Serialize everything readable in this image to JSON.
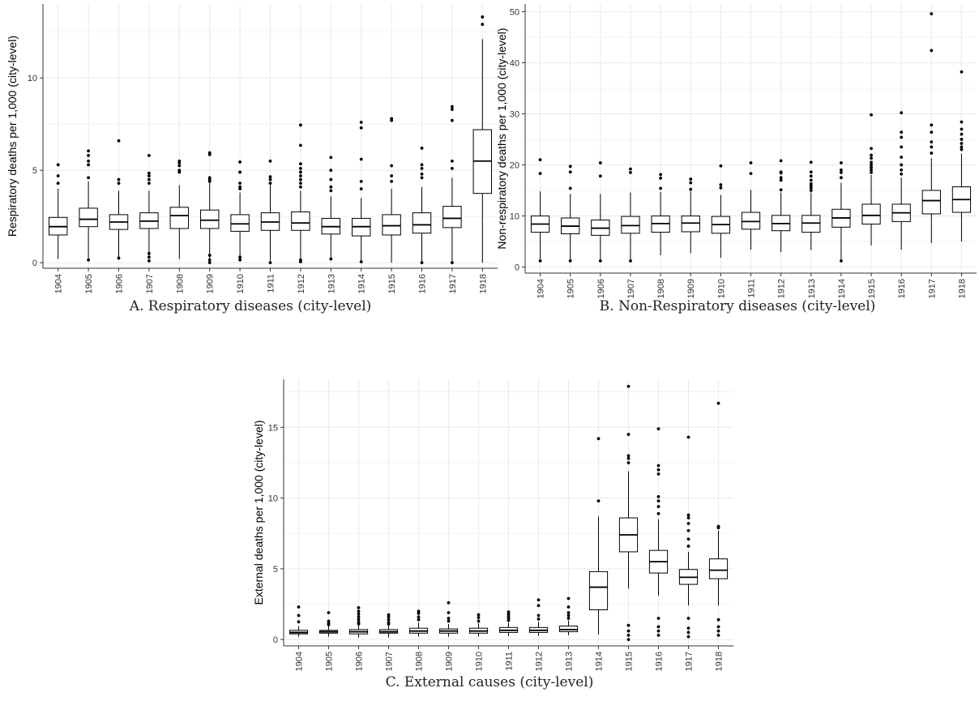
{
  "captions": {
    "a": {
      "prefix": "A.",
      "text": "Respiratory diseases (city-level)"
    },
    "b": {
      "prefix": "B.",
      "text": "Non-Respiratory diseases (city-level)"
    },
    "c": {
      "prefix": "C.",
      "text": "External causes (city-level)"
    }
  },
  "colors": {
    "grid": "#ebebeb",
    "box": "#000000",
    "axis": "#333333",
    "background": "#ffffff"
  },
  "chart_data": [
    {
      "id": "a",
      "type": "box",
      "title": "",
      "xlabel": "",
      "ylabel": "Respiratory deaths per 1,000 (city-level)",
      "categories": [
        "1904",
        "1905",
        "1906",
        "1907",
        "1908",
        "1909",
        "1910",
        "1911",
        "1912",
        "1913",
        "1914",
        "1915",
        "1916",
        "1917",
        "1918"
      ],
      "ylim": [
        -0.3,
        14
      ],
      "yticks": [
        0,
        5,
        10
      ],
      "grid": true,
      "boxes": [
        {
          "low": 0.2,
          "q1": 1.5,
          "median": 1.95,
          "q3": 2.45,
          "high": 4.0,
          "outliers": [
            4.3,
            4.7,
            5.3
          ]
        },
        {
          "low": 0.2,
          "q1": 1.95,
          "median": 2.35,
          "q3": 2.95,
          "high": 4.4,
          "outliers": [
            0.15,
            4.6,
            5.3,
            5.5,
            5.8,
            6.05
          ]
        },
        {
          "low": 0.25,
          "q1": 1.8,
          "median": 2.2,
          "q3": 2.6,
          "high": 3.9,
          "outliers": [
            0.25,
            4.3,
            4.5,
            6.6
          ]
        },
        {
          "low": 0.2,
          "q1": 1.85,
          "median": 2.25,
          "q3": 2.7,
          "high": 3.9,
          "outliers": [
            0.1,
            0.3,
            0.5,
            4.3,
            4.5,
            4.7,
            4.85,
            5.8
          ]
        },
        {
          "low": 0.2,
          "q1": 1.85,
          "median": 2.55,
          "q3": 3.0,
          "high": 4.2,
          "outliers": [
            4.9,
            5.0,
            5.25,
            5.4,
            5.5
          ]
        },
        {
          "low": 0.2,
          "q1": 1.85,
          "median": 2.3,
          "q3": 2.85,
          "high": 4.3,
          "outliers": [
            0.0,
            0.15,
            0.4,
            4.4,
            4.5,
            4.6,
            5.85,
            5.95
          ]
        },
        {
          "low": 0.3,
          "q1": 1.7,
          "median": 2.1,
          "q3": 2.6,
          "high": 3.8,
          "outliers": [
            0.15,
            0.3,
            4.0,
            4.1,
            4.3,
            4.9,
            5.45
          ]
        },
        {
          "low": 0.1,
          "q1": 1.75,
          "median": 2.2,
          "q3": 2.7,
          "high": 4.2,
          "outliers": [
            0.0,
            4.3,
            4.5,
            4.65,
            5.5
          ]
        },
        {
          "low": 0.2,
          "q1": 1.75,
          "median": 2.15,
          "q3": 2.75,
          "high": 3.9,
          "outliers": [
            0.05,
            0.15,
            4.1,
            4.3,
            4.5,
            4.7,
            4.9,
            5.1,
            5.35,
            6.35,
            7.45
          ]
        },
        {
          "low": 0.25,
          "q1": 1.55,
          "median": 1.95,
          "q3": 2.4,
          "high": 3.6,
          "outliers": [
            0.2,
            3.9,
            4.1,
            4.5,
            5.0,
            5.7
          ]
        },
        {
          "low": 0.1,
          "q1": 1.45,
          "median": 1.95,
          "q3": 2.4,
          "high": 3.5,
          "outliers": [
            0.05,
            4.0,
            4.4,
            5.6,
            7.3,
            7.6
          ]
        },
        {
          "low": 0.0,
          "q1": 1.5,
          "median": 2.0,
          "q3": 2.6,
          "high": 4.0,
          "outliers": [
            4.4,
            4.7,
            5.25,
            7.7,
            7.8
          ]
        },
        {
          "low": 0.0,
          "q1": 1.6,
          "median": 2.05,
          "q3": 2.7,
          "high": 4.1,
          "outliers": [
            0.0,
            4.6,
            4.8,
            5.1,
            5.3,
            6.2
          ]
        },
        {
          "low": 0.0,
          "q1": 1.9,
          "median": 2.4,
          "q3": 3.05,
          "high": 4.6,
          "outliers": [
            0.0,
            5.1,
            5.5,
            7.7,
            8.3,
            8.45
          ]
        },
        {
          "low": 0.0,
          "q1": 3.75,
          "median": 5.5,
          "q3": 7.2,
          "high": 12.1,
          "outliers": [
            12.9,
            13.3
          ]
        }
      ]
    },
    {
      "id": "b",
      "type": "box",
      "title": "",
      "xlabel": "",
      "ylabel": "Non-respiratory deaths per 1,000 (city-level)",
      "categories": [
        "1904",
        "1905",
        "1906",
        "1907",
        "1908",
        "1909",
        "1910",
        "1911",
        "1912",
        "1913",
        "1914",
        "1915",
        "1916",
        "1917",
        "1918"
      ],
      "ylim": [
        -1.2,
        51.5
      ],
      "yticks": [
        0,
        10,
        20,
        30,
        40,
        50
      ],
      "grid": true,
      "boxes": [
        {
          "low": 1.2,
          "q1": 6.8,
          "median": 8.4,
          "q3": 10.0,
          "high": 14.8,
          "outliers": [
            1.2,
            18.3,
            21.0
          ]
        },
        {
          "low": 1.2,
          "q1": 6.5,
          "median": 8.0,
          "q3": 9.6,
          "high": 14.3,
          "outliers": [
            1.2,
            15.4,
            18.6,
            19.7
          ]
        },
        {
          "low": 1.2,
          "q1": 6.2,
          "median": 7.6,
          "q3": 9.2,
          "high": 14.3,
          "outliers": [
            1.2,
            17.8,
            20.4
          ]
        },
        {
          "low": 1.2,
          "q1": 6.6,
          "median": 8.1,
          "q3": 9.9,
          "high": 14.6,
          "outliers": [
            1.2,
            18.5,
            19.2
          ]
        },
        {
          "low": 2.3,
          "q1": 6.8,
          "median": 8.5,
          "q3": 10.0,
          "high": 14.7,
          "outliers": [
            15.4,
            17.4,
            18.1
          ]
        },
        {
          "low": 2.7,
          "q1": 6.9,
          "median": 8.6,
          "q3": 10.0,
          "high": 14.8,
          "outliers": [
            15.2,
            16.5,
            17.2
          ]
        },
        {
          "low": 1.8,
          "q1": 6.6,
          "median": 8.3,
          "q3": 9.9,
          "high": 14.1,
          "outliers": [
            15.5,
            16.1,
            19.8
          ]
        },
        {
          "low": 3.4,
          "q1": 7.4,
          "median": 8.9,
          "q3": 10.7,
          "high": 15.1,
          "outliers": [
            18.3,
            20.4
          ]
        },
        {
          "low": 2.9,
          "q1": 7.1,
          "median": 8.5,
          "q3": 10.1,
          "high": 14.6,
          "outliers": [
            15.1,
            17.0,
            17.5,
            18.4,
            18.6,
            20.8
          ]
        },
        {
          "low": 3.3,
          "q1": 6.8,
          "median": 8.6,
          "q3": 10.1,
          "high": 14.6,
          "outliers": [
            15.0,
            15.5,
            15.9,
            16.3,
            17.0,
            17.8,
            18.6,
            20.5
          ]
        },
        {
          "low": 1.2,
          "q1": 7.8,
          "median": 9.6,
          "q3": 11.3,
          "high": 16.5,
          "outliers": [
            1.2,
            17.5,
            18.5,
            19.0,
            20.4
          ]
        },
        {
          "low": 4.2,
          "q1": 8.4,
          "median": 10.1,
          "q3": 12.3,
          "high": 18.0,
          "outliers": [
            18.5,
            19.0,
            19.5,
            20.0,
            20.5,
            21.3,
            21.9,
            23.2,
            29.8
          ]
        },
        {
          "low": 3.4,
          "q1": 8.9,
          "median": 10.6,
          "q3": 12.3,
          "high": 17.5,
          "outliers": [
            18.2,
            19.0,
            20.0,
            21.5,
            23.5,
            25.4,
            26.4,
            30.2
          ]
        },
        {
          "low": 4.7,
          "q1": 10.4,
          "median": 13.0,
          "q3": 15.0,
          "high": 21.3,
          "outliers": [
            22.3,
            23.5,
            24.5,
            26.4,
            27.8,
            42.4,
            49.6
          ]
        },
        {
          "low": 5.0,
          "q1": 10.7,
          "median": 13.2,
          "q3": 15.7,
          "high": 22.2,
          "outliers": [
            23.0,
            23.5,
            24.2,
            25.0,
            26.0,
            27.0,
            28.4,
            38.2
          ]
        }
      ]
    },
    {
      "id": "c",
      "type": "box",
      "title": "",
      "xlabel": "",
      "ylabel": "External deaths per 1,000 (city-level)",
      "categories": [
        "1904",
        "1905",
        "1906",
        "1907",
        "1908",
        "1909",
        "1910",
        "1911",
        "1912",
        "1913",
        "1914",
        "1915",
        "1916",
        "1917",
        "1918"
      ],
      "ylim": [
        -0.45,
        18.4
      ],
      "yticks": [
        0,
        5,
        10,
        15
      ],
      "grid": true,
      "boxes": [
        {
          "low": 0.2,
          "q1": 0.4,
          "median": 0.5,
          "q3": 0.65,
          "high": 0.95,
          "outliers": [
            1.25,
            1.7,
            2.3
          ]
        },
        {
          "low": 0.2,
          "q1": 0.45,
          "median": 0.55,
          "q3": 0.65,
          "high": 0.95,
          "outliers": [
            1.05,
            1.15,
            1.3,
            1.9
          ]
        },
        {
          "low": 0.15,
          "q1": 0.4,
          "median": 0.55,
          "q3": 0.7,
          "high": 1.0,
          "outliers": [
            1.1,
            1.2,
            1.4,
            1.6,
            1.8,
            2.0,
            2.25
          ]
        },
        {
          "low": 0.15,
          "q1": 0.45,
          "median": 0.55,
          "q3": 0.7,
          "high": 1.0,
          "outliers": [
            1.1,
            1.2,
            1.4,
            1.6,
            1.75
          ]
        },
        {
          "low": 0.2,
          "q1": 0.45,
          "median": 0.6,
          "q3": 0.8,
          "high": 1.2,
          "outliers": [
            1.4,
            1.6,
            1.85,
            2.0
          ]
        },
        {
          "low": 0.2,
          "q1": 0.45,
          "median": 0.6,
          "q3": 0.75,
          "high": 1.1,
          "outliers": [
            1.3,
            1.5,
            1.9,
            2.6
          ]
        },
        {
          "low": 0.2,
          "q1": 0.45,
          "median": 0.6,
          "q3": 0.8,
          "high": 1.15,
          "outliers": [
            1.3,
            1.55,
            1.75
          ]
        },
        {
          "low": 0.25,
          "q1": 0.5,
          "median": 0.65,
          "q3": 0.85,
          "high": 1.2,
          "outliers": [
            1.35,
            1.5,
            1.65,
            1.8,
            1.95
          ]
        },
        {
          "low": 0.25,
          "q1": 0.5,
          "median": 0.65,
          "q3": 0.85,
          "high": 1.25,
          "outliers": [
            1.45,
            1.7,
            2.4,
            2.8
          ]
        },
        {
          "low": 0.3,
          "q1": 0.55,
          "median": 0.7,
          "q3": 0.95,
          "high": 1.35,
          "outliers": [
            1.5,
            1.7,
            1.9,
            2.3,
            2.9
          ]
        },
        {
          "low": 0.35,
          "q1": 2.1,
          "median": 3.7,
          "q3": 4.8,
          "high": 8.7,
          "outliers": [
            9.8,
            14.2
          ]
        },
        {
          "low": 3.6,
          "q1": 6.2,
          "median": 7.4,
          "q3": 8.6,
          "high": 11.9,
          "outliers": [
            0.0,
            0.3,
            0.6,
            1.0,
            12.5,
            12.8,
            13.0,
            14.5,
            17.9
          ]
        },
        {
          "low": 3.1,
          "q1": 4.7,
          "median": 5.5,
          "q3": 6.3,
          "high": 8.5,
          "outliers": [
            0.3,
            0.6,
            0.9,
            1.5,
            8.9,
            9.4,
            9.8,
            10.1,
            11.7,
            12.0,
            12.3,
            14.9
          ]
        },
        {
          "low": 2.4,
          "q1": 3.9,
          "median": 4.4,
          "q3": 4.95,
          "high": 6.2,
          "outliers": [
            0.2,
            0.5,
            0.8,
            1.5,
            6.6,
            7.1,
            7.7,
            8.2,
            8.6,
            8.8,
            14.3
          ]
        },
        {
          "low": 2.4,
          "q1": 4.3,
          "median": 4.9,
          "q3": 5.7,
          "high": 7.7,
          "outliers": [
            0.3,
            0.6,
            0.9,
            1.4,
            7.9,
            8.0,
            16.7
          ]
        }
      ]
    }
  ]
}
